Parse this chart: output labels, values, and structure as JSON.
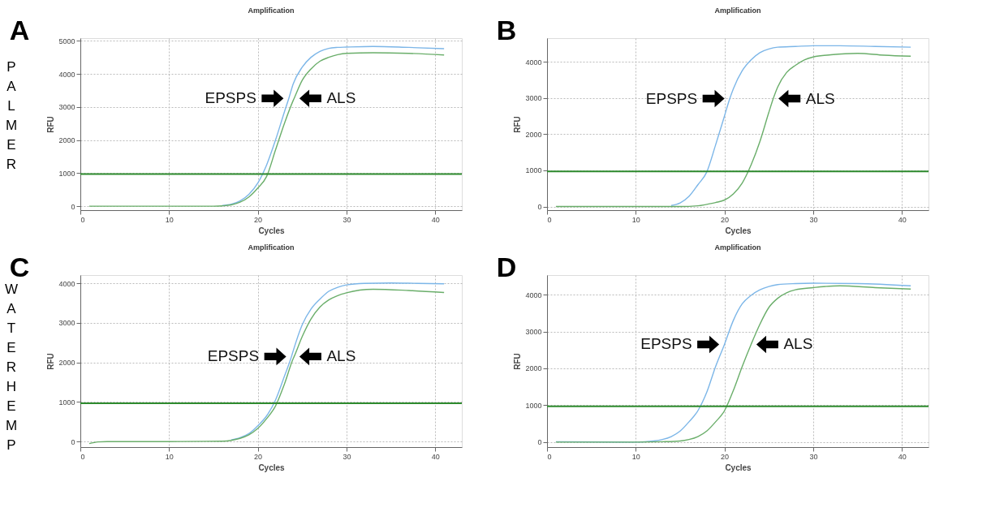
{
  "chart_data": [
    {
      "type": "line",
      "title": "Amplification",
      "xlabel": "Cycles",
      "ylabel": "RFU",
      "xlim": [
        0,
        43
      ],
      "xticks": [
        0,
        10,
        20,
        30,
        40
      ],
      "ylim": [
        -120,
        5080
      ],
      "yticks": [
        0,
        1000,
        2000,
        3000,
        4000,
        5000
      ],
      "grid": true,
      "series": [
        {
          "color": "#7cb6e8",
          "x": [
            16,
            17,
            18,
            19,
            20,
            21,
            22,
            23,
            23.5,
            24,
            25,
            26,
            27,
            28,
            29,
            30,
            33,
            37,
            41
          ],
          "values": [
            20,
            60,
            160,
            360,
            700,
            1250,
            2000,
            2850,
            3260,
            3700,
            4200,
            4500,
            4680,
            4770,
            4800,
            4810,
            4830,
            4800,
            4760
          ]
        },
        {
          "color": "#6aae6a",
          "x": [
            1,
            5,
            10,
            15,
            16,
            17,
            18,
            19,
            20,
            21,
            22,
            23,
            24,
            24.1,
            25,
            26,
            27,
            28,
            29,
            30,
            33,
            37,
            41
          ],
          "values": [
            0,
            0,
            0,
            0,
            10,
            40,
            120,
            280,
            550,
            900,
            1700,
            2500,
            3200,
            3260,
            3800,
            4150,
            4380,
            4500,
            4580,
            4620,
            4640,
            4620,
            4570
          ]
        }
      ],
      "ref_lines": [
        {
          "axis": "y",
          "value": 970,
          "color": "#2e8b2e"
        }
      ],
      "annotations": [
        "A",
        "PALMER",
        {
          "text": "EPSPS",
          "x": 23.5,
          "y": 3260
        },
        {
          "text": "ALS",
          "x": 24.1,
          "y": 3260
        }
      ]
    },
    {
      "type": "line",
      "title": "Amplification",
      "xlabel": "Cycles",
      "ylabel": "RFU",
      "xlim": [
        0,
        43
      ],
      "xticks": [
        0,
        10,
        20,
        30,
        40
      ],
      "ylim": [
        -100,
        4650
      ],
      "yticks": [
        0,
        1000,
        2000,
        3000,
        4000
      ],
      "grid": true,
      "series": [
        {
          "color": "#7cb6e8",
          "x": [
            14,
            15,
            16,
            17,
            18,
            19,
            20,
            20.6,
            21,
            22,
            23,
            24,
            25,
            26,
            28,
            30,
            33,
            37,
            41
          ],
          "values": [
            30,
            100,
            280,
            600,
            950,
            1700,
            2500,
            2980,
            3250,
            3750,
            4050,
            4250,
            4350,
            4400,
            4420,
            4440,
            4440,
            4420,
            4400
          ]
        },
        {
          "color": "#6aae6a",
          "x": [
            1,
            5,
            10,
            15,
            17,
            18,
            19,
            20,
            21,
            22,
            23,
            24,
            25,
            25.5,
            26,
            27,
            28,
            29,
            30,
            32,
            35,
            38,
            41
          ],
          "values": [
            0,
            0,
            0,
            0,
            20,
            60,
            110,
            180,
            350,
            650,
            1150,
            1800,
            2600,
            2980,
            3300,
            3700,
            3900,
            4050,
            4130,
            4190,
            4230,
            4180,
            4150
          ]
        }
      ],
      "ref_lines": [
        {
          "axis": "y",
          "value": 970,
          "color": "#2e8b2e"
        }
      ],
      "annotations": [
        "B",
        {
          "text": "EPSPS",
          "x": 20.6,
          "y": 2980
        },
        {
          "text": "ALS",
          "x": 25.5,
          "y": 2980
        }
      ]
    },
    {
      "type": "line",
      "title": "Amplification",
      "xlabel": "Cycles",
      "ylabel": "RFU",
      "xlim": [
        0,
        43
      ],
      "xticks": [
        0,
        10,
        20,
        30,
        40
      ],
      "ylim": [
        -140,
        4210
      ],
      "yticks": [
        0,
        1000,
        2000,
        3000,
        4000
      ],
      "grid": true,
      "series": [
        {
          "color": "#7cb6e8",
          "x": [
            17,
            18,
            19,
            20,
            21,
            22,
            23,
            23.8,
            24,
            25,
            26,
            27,
            28,
            29,
            30,
            32,
            35,
            38,
            41
          ],
          "values": [
            40,
            100,
            200,
            400,
            650,
            1050,
            1650,
            2150,
            2300,
            2950,
            3350,
            3600,
            3800,
            3900,
            3960,
            4000,
            4010,
            4000,
            3990
          ]
        },
        {
          "color": "#6aae6a",
          "x": [
            1,
            2,
            3,
            10,
            16,
            17,
            18,
            19,
            20,
            21,
            22,
            23,
            24,
            24.1,
            25,
            26,
            27,
            28,
            29,
            30,
            33,
            37,
            41
          ],
          "values": [
            -50,
            -10,
            0,
            0,
            10,
            30,
            80,
            170,
            330,
            580,
            900,
            1450,
            2100,
            2150,
            2650,
            3100,
            3400,
            3580,
            3690,
            3760,
            3850,
            3820,
            3770
          ]
        }
      ],
      "ref_lines": [
        {
          "axis": "y",
          "value": 970,
          "color": "#2e8b2e"
        }
      ],
      "annotations": [
        "C",
        "WATERHEMP",
        {
          "text": "EPSPS",
          "x": 23.8,
          "y": 2150
        },
        {
          "text": "ALS",
          "x": 24.1,
          "y": 2150
        }
      ]
    },
    {
      "type": "line",
      "title": "Amplification",
      "xlabel": "Cycles",
      "ylabel": "RFU",
      "xlim": [
        0,
        43
      ],
      "xticks": [
        0,
        10,
        20,
        30,
        40
      ],
      "ylim": [
        -135,
        4530
      ],
      "yticks": [
        0,
        1000,
        2000,
        3000,
        4000
      ],
      "grid": true,
      "series": [
        {
          "color": "#7cb6e8",
          "x": [
            1,
            10,
            12,
            13,
            14,
            15,
            16,
            17,
            18,
            19,
            20,
            21,
            22,
            23,
            24,
            25,
            26,
            28,
            30,
            35,
            41
          ],
          "values": [
            10,
            0,
            30,
            70,
            150,
            300,
            550,
            850,
            1350,
            2050,
            2650,
            3300,
            3750,
            3980,
            4130,
            4220,
            4270,
            4300,
            4310,
            4300,
            4240
          ]
        },
        {
          "color": "#6aae6a",
          "x": [
            1,
            10,
            13,
            15,
            16,
            17,
            18,
            19,
            20,
            21,
            22,
            23,
            24,
            25,
            26,
            27,
            28,
            30,
            33,
            37,
            41
          ],
          "values": [
            0,
            0,
            10,
            30,
            70,
            150,
            300,
            550,
            850,
            1400,
            2050,
            2650,
            3200,
            3650,
            3900,
            4050,
            4130,
            4190,
            4240,
            4190,
            4150
          ]
        }
      ],
      "ref_lines": [
        {
          "axis": "y",
          "value": 970,
          "color": "#2e8b2e"
        }
      ],
      "annotations": [
        "D",
        {
          "text": "EPSPS",
          "x": 20,
          "y": 2650
        },
        {
          "text": "ALS",
          "x": 23,
          "y": 2650
        }
      ]
    }
  ]
}
